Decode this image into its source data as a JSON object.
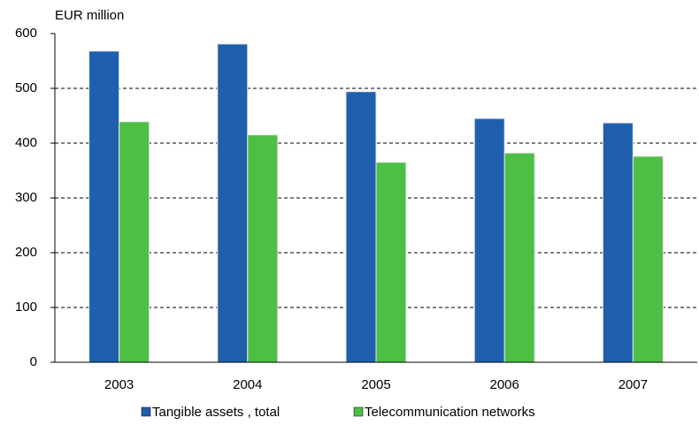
{
  "chart_data": {
    "type": "bar",
    "y_axis_label": "EUR million",
    "categories": [
      "2003",
      "2004",
      "2005",
      "2006",
      "2007"
    ],
    "series": [
      {
        "name": "Tangible assets , total",
        "color": "#1f5fae",
        "values": [
          568,
          581,
          494,
          445,
          437
        ]
      },
      {
        "name": "Telecommunication networks",
        "color": "#4cbf44",
        "values": [
          439,
          415,
          365,
          382,
          376
        ]
      }
    ],
    "ylim": [
      0,
      600
    ],
    "yticks": [
      0,
      100,
      200,
      300,
      400,
      500,
      600
    ],
    "grid": true,
    "legend": "bottom"
  }
}
